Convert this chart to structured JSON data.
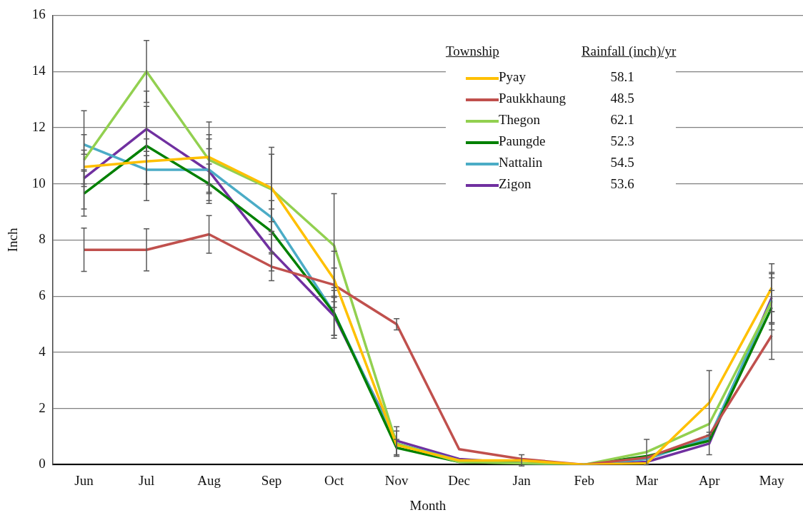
{
  "chart_data": {
    "type": "line",
    "xlabel": "Month",
    "ylabel": "Inch",
    "legend_title": "Township",
    "legend": "top right",
    "grid": "y",
    "marker": "none",
    "line_style": "solid",
    "categories": [
      "Jun",
      "Jul",
      "Aug",
      "Sep",
      "Oct",
      "Nov",
      "Dec",
      "Jan",
      "Feb",
      "Mar",
      "Apr",
      "May"
    ],
    "ylim": [
      0,
      16
    ],
    "yticks": [
      0,
      2,
      4,
      6,
      8,
      10,
      12,
      14,
      16
    ],
    "annotations": [
      "Rainfall (inch)/yr",
      "58.1",
      "48.5",
      "62.1",
      "52.3",
      "54.5",
      "53.6"
    ],
    "series": [
      {
        "name": "Pyay",
        "color": "#ffc000",
        "values": [
          10.6,
          10.8,
          10.95,
          9.85,
          6.6,
          0.7,
          0.15,
          0.15,
          0,
          0.05,
          2.2,
          6.3
        ],
        "errors": [
          0.6,
          0.8,
          1.25,
          1.2,
          1.0,
          null,
          null,
          0.2,
          null,
          null,
          1.15,
          0.85
        ]
      },
      {
        "name": "Paukkhaung",
        "color": "#c0504d",
        "values": [
          7.65,
          7.65,
          8.2,
          7.05,
          6.4,
          5.0,
          0.55,
          0.2,
          0,
          0.25,
          1.05,
          4.6
        ],
        "errors": [
          0.77,
          0.75,
          0.67,
          0.5,
          0.6,
          0.2,
          null,
          null,
          null,
          null,
          null,
          0.85
        ]
      },
      {
        "name": "Thegon",
        "color": "#92d050",
        "values": [
          10.85,
          14.0,
          10.85,
          9.8,
          7.8,
          0.75,
          0.1,
          0.05,
          0,
          0.45,
          1.45,
          5.8
        ],
        "errors": [
          1.75,
          1.1,
          0.9,
          1.5,
          1.85,
          0.45,
          null,
          null,
          null,
          0.45,
          null,
          1.0
        ]
      },
      {
        "name": "Paungde",
        "color": "#008000",
        "values": [
          9.65,
          11.35,
          10.0,
          8.3,
          5.4,
          0.6,
          0.1,
          0.05,
          0,
          0.3,
          0.85,
          5.6
        ],
        "errors": [
          0.8,
          1.95,
          0.7,
          0.8,
          0.8,
          0.3,
          null,
          null,
          null,
          null,
          null,
          0.6
        ]
      },
      {
        "name": "Nattalin",
        "color": "#4bacc6",
        "values": [
          11.4,
          10.5,
          10.5,
          8.8,
          5.4,
          0.75,
          0.15,
          0.05,
          0,
          0.2,
          0.95,
          5.85
        ],
        "errors": [
          0.35,
          0.5,
          1.1,
          0.6,
          0.9,
          null,
          null,
          null,
          null,
          null,
          null,
          0.8
        ]
      },
      {
        "name": "Zigon",
        "color": "#7030a0",
        "values": [
          10.2,
          11.95,
          10.45,
          7.6,
          5.3,
          0.85,
          0.2,
          0.05,
          0,
          0.1,
          0.75,
          5.95
        ],
        "errors": [
          0.3,
          0.8,
          0.8,
          0.7,
          0.7,
          0.5,
          null,
          null,
          null,
          null,
          0.4,
          0.9
        ]
      }
    ]
  }
}
